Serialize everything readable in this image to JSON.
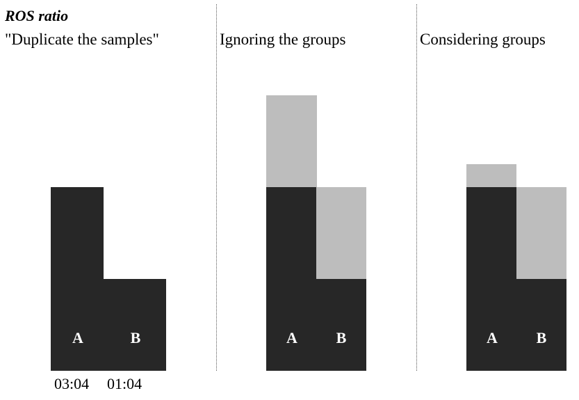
{
  "title": "ROS ratio",
  "colors": {
    "original_samples": "#272727",
    "duplicated_samples": "#bdbdbd",
    "divider": "#555555"
  },
  "panels": [
    {
      "heading": "\"Duplicate the samples\"",
      "bars": [
        {
          "label": "A",
          "ratio": "03:04"
        },
        {
          "label": "B",
          "ratio": "01:04"
        }
      ]
    },
    {
      "heading": "Ignoring the groups",
      "bars": [
        {
          "label": "A"
        },
        {
          "label": "B"
        }
      ]
    },
    {
      "heading": "Considering groups",
      "bars": [
        {
          "label": "A"
        },
        {
          "label": "B"
        }
      ]
    }
  ]
}
